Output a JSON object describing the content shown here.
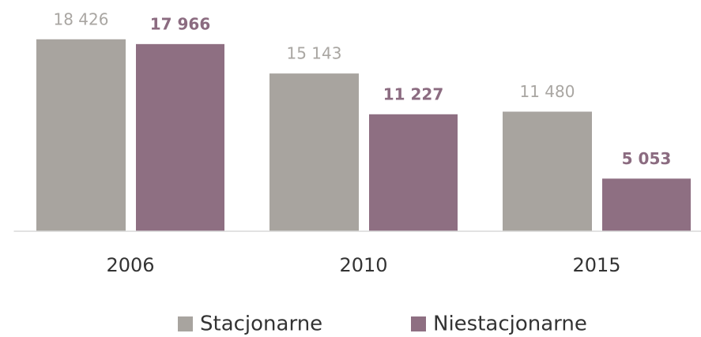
{
  "chart_data": {
    "type": "bar",
    "categories": [
      "2006",
      "2010",
      "2015"
    ],
    "series": [
      {
        "name": "Stacjonarne",
        "color": "#a8a49f",
        "values": [
          18426,
          15143,
          11480
        ],
        "value_labels": [
          "18 426",
          "15 143",
          "11 480"
        ]
      },
      {
        "name": "Niestacjonarne",
        "color": "#8e6f82",
        "values": [
          17966,
          11227,
          5053
        ],
        "value_labels": [
          "17 966",
          "11 227",
          "5 053"
        ]
      }
    ],
    "ylim": [
      0,
      20000
    ],
    "legend": "bottom"
  }
}
